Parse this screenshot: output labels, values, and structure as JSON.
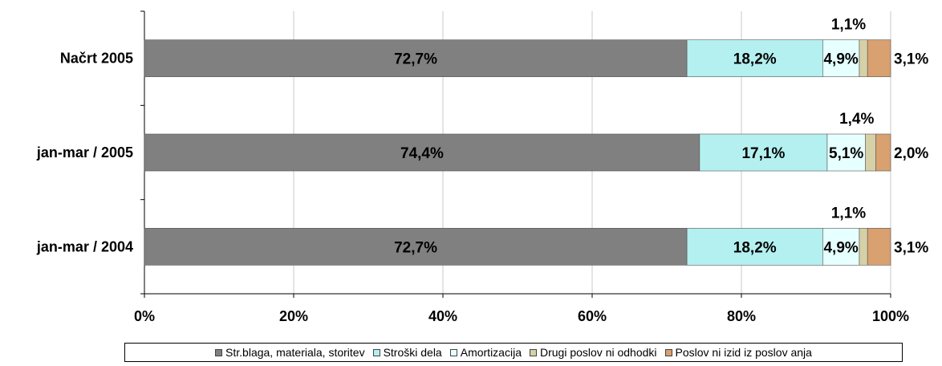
{
  "chart_data": {
    "type": "bar",
    "orientation": "horizontal",
    "stacked": "percent",
    "categories": [
      "Načrt 2005",
      "jan-mar / 2005",
      "jan-mar / 2004"
    ],
    "series": [
      {
        "name": "Str.blaga, materiala, storitev",
        "color": "#808080",
        "values": [
          72.7,
          74.4,
          72.7
        ],
        "labels": [
          "72,7%",
          "74,4%",
          "72,7%"
        ]
      },
      {
        "name": "Stroški dela",
        "color": "#b4f0f0",
        "values": [
          18.2,
          17.1,
          18.2
        ],
        "labels": [
          "18,2%",
          "17,1%",
          "18,2%"
        ]
      },
      {
        "name": "Amortizacija",
        "color": "#e6ffff",
        "values": [
          4.9,
          5.1,
          4.9
        ],
        "labels": [
          "4,9%",
          "5,1%",
          "4,9%"
        ]
      },
      {
        "name": "Drugi poslov ni odhodki",
        "color": "#d6d0a8",
        "values": [
          1.1,
          1.4,
          1.1
        ],
        "labels": [
          "1,1%",
          "1,4%",
          "1,1%"
        ]
      },
      {
        "name": "Poslov ni izid iz poslov anja",
        "color": "#d9a070",
        "values": [
          3.1,
          2.0,
          3.1
        ],
        "labels": [
          "3,1%",
          "2,0%",
          "3,1%"
        ]
      }
    ],
    "xlim": [
      0,
      100
    ],
    "xticks": [
      "0%",
      "20%",
      "40%",
      "60%",
      "80%",
      "100%"
    ],
    "grid": "vertical",
    "legend": "bottom",
    "title": "",
    "xlabel": "",
    "ylabel": ""
  }
}
